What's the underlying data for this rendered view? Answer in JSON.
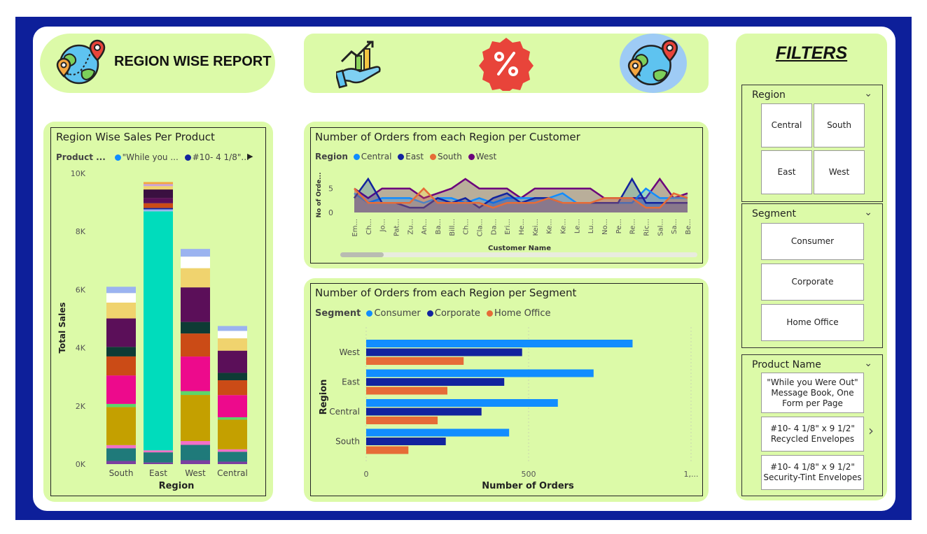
{
  "header": {
    "title": "REGION WISE REPORT"
  },
  "filters": {
    "title": "FILTERS",
    "region": {
      "title": "Region",
      "options": [
        "Central",
        "South",
        "East",
        "West"
      ]
    },
    "segment": {
      "title": "Segment",
      "options": [
        "Consumer",
        "Corporate",
        "Home Office"
      ]
    },
    "product": {
      "title": "Product Name",
      "options": [
        "\"While you Were Out\" Message Book, One Form per Page",
        "#10- 4 1/8\" x 9 1/2\" Recycled Envelopes",
        "#10- 4 1/8\" x 9 1/2\" Security-Tint Envelopes"
      ]
    }
  },
  "colors": {
    "frame": "#0d1f9a",
    "panel": "#dcfaa8",
    "central": "#118dff",
    "east": "#12239e",
    "south": "#e66c37",
    "west": "#6b007b",
    "consumer": "#118dff",
    "corporate": "#12239e",
    "home_office": "#e66c37"
  },
  "icons": {
    "left": "globe-location-icon",
    "center1": "growth-chart-icon",
    "center2": "percent-badge-icon",
    "center3": "globe-location-icon",
    "chevron": "chevron-down-icon",
    "next": "chevron-right-icon"
  },
  "chart_data": [
    {
      "type": "bar",
      "title": "Region Wise Sales Per Product",
      "legend_label": "Product ...",
      "legend": [
        "\"While you ...",
        "#10- 4 1/8\"..."
      ],
      "xlabel": "Region",
      "ylabel": "Total Sales",
      "categories": [
        "South",
        "East",
        "West",
        "Central"
      ],
      "values": [
        6100,
        9700,
        7400,
        4750
      ],
      "ylim": [
        0,
        10000
      ],
      "yticks": [
        "0K",
        "2K",
        "4K",
        "6K",
        "8K",
        "10K"
      ],
      "stacked": true
    },
    {
      "type": "line",
      "title": "Number of Orders from each Region per Customer",
      "legend_label": "Region",
      "xlabel": "Customer Name",
      "ylabel": "No of Orde...",
      "x": [
        "Em...",
        "Ch...",
        "Jo...",
        "Pat...",
        "Zu...",
        "An...",
        "Ba...",
        "Bill...",
        "Ch...",
        "Cla...",
        "Da...",
        "Eri...",
        "He...",
        "Kei...",
        "Ke...",
        "Ke...",
        "Le...",
        "Lu...",
        "No...",
        "Pe...",
        "Re...",
        "Ric...",
        "Sal...",
        "Sa...",
        "Be..."
      ],
      "yticks": [
        "0",
        "5"
      ],
      "ylim": [
        0,
        7
      ],
      "series": [
        {
          "name": "Central",
          "values": [
            4,
            2,
            3,
            3,
            3,
            2,
            3,
            3,
            2,
            3,
            2,
            3,
            3,
            3,
            3,
            4,
            2,
            2,
            2,
            2,
            2,
            5,
            3,
            3,
            3
          ]
        },
        {
          "name": "East",
          "values": [
            3,
            7,
            2,
            2,
            1,
            1,
            3,
            2,
            3,
            1,
            3,
            4,
            2,
            3,
            3,
            2,
            2,
            2,
            2,
            2,
            7,
            2,
            2,
            2,
            2
          ]
        },
        {
          "name": "South",
          "values": [
            5,
            2,
            2,
            2,
            2,
            5,
            2,
            2,
            2,
            2,
            1,
            2,
            2,
            2,
            3,
            2,
            2,
            2,
            3,
            3,
            3,
            1,
            1,
            4,
            3
          ]
        },
        {
          "name": "West",
          "values": [
            5,
            3,
            5,
            5,
            5,
            3,
            4,
            5,
            7,
            5,
            5,
            5,
            3,
            5,
            5,
            5,
            5,
            5,
            3,
            3,
            3,
            3,
            7,
            3,
            4
          ]
        }
      ]
    },
    {
      "type": "bar",
      "orientation": "horizontal",
      "title": "Number of Orders from each Region per Segment",
      "legend_label": "Segment",
      "xlabel": "Number of Orders",
      "ylabel": "Region",
      "categories": [
        "West",
        "East",
        "Central",
        "South"
      ],
      "xticks": [
        "0",
        "500",
        "1,..."
      ],
      "xlim": [
        0,
        1000
      ],
      "series": [
        {
          "name": "Consumer",
          "values": [
            820,
            700,
            590,
            440
          ]
        },
        {
          "name": "Corporate",
          "values": [
            480,
            425,
            355,
            245
          ]
        },
        {
          "name": "Home Office",
          "values": [
            300,
            250,
            220,
            130
          ]
        }
      ]
    }
  ]
}
